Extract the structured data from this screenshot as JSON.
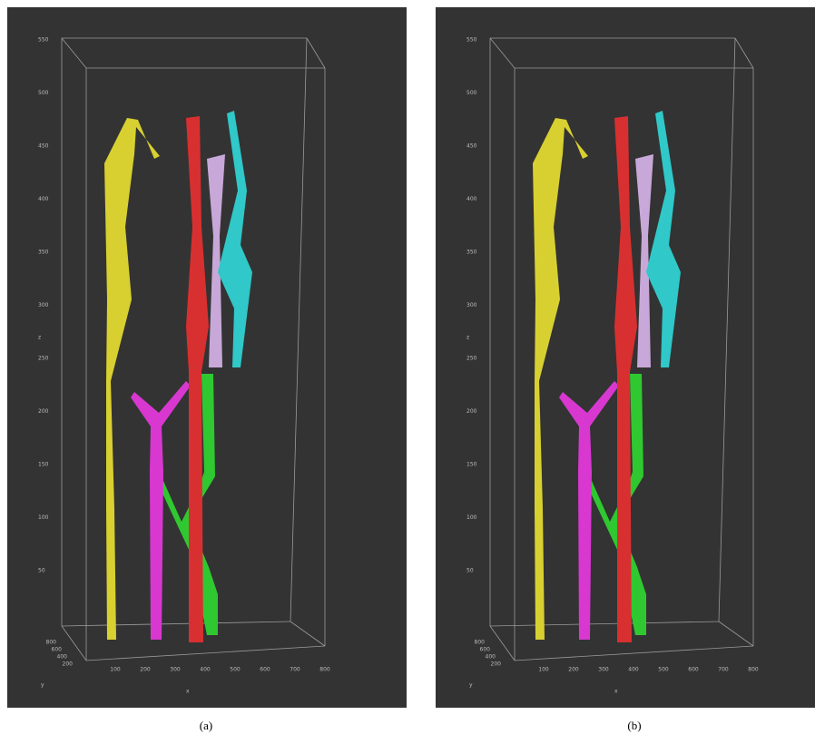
{
  "panels": [
    {
      "caption": "(a)",
      "z_ticks": [
        550,
        500,
        450,
        400,
        350,
        300,
        250,
        200,
        150,
        100,
        50
      ],
      "x_ticks": [
        100,
        200,
        300,
        400,
        500,
        600,
        700,
        800
      ],
      "y_ticks": [
        800,
        600,
        400,
        200
      ],
      "x_label": "x",
      "y_label": "y",
      "z_label": "z"
    },
    {
      "caption": "(b)",
      "z_ticks": [
        550,
        500,
        450,
        400,
        350,
        300,
        250,
        200,
        150,
        100,
        50
      ],
      "x_ticks": [
        100,
        200,
        300,
        400,
        500,
        600,
        700,
        800
      ],
      "y_ticks": [
        800,
        600,
        400,
        200
      ],
      "x_label": "x",
      "y_label": "y",
      "z_label": "z"
    }
  ]
}
